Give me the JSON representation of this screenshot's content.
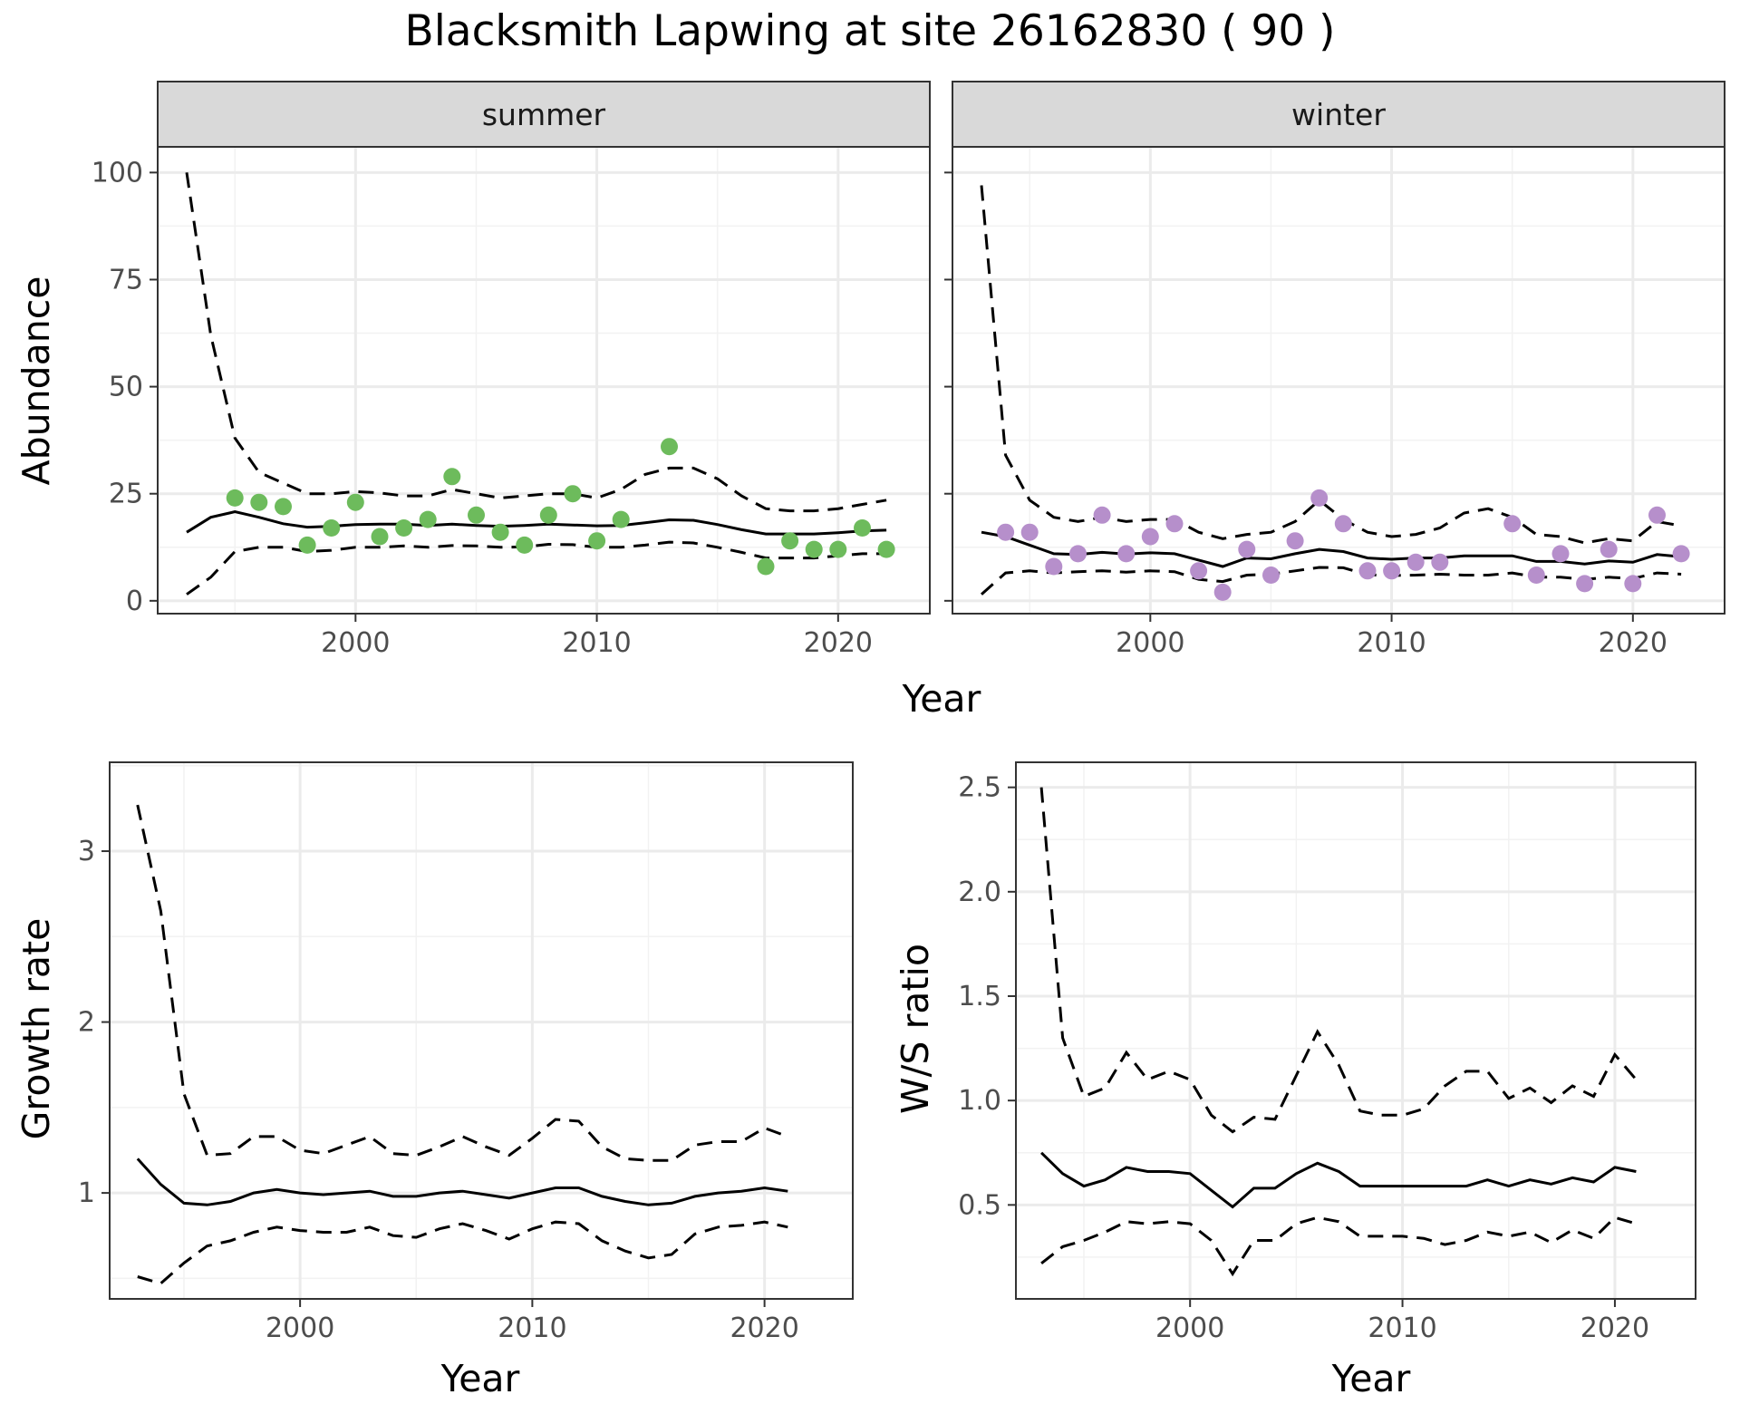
{
  "title": "Blacksmith Lapwing at site 26162830 ( 90 )",
  "chart_data": [
    {
      "type": "line",
      "layout": "facet",
      "xlabel": "Year",
      "ylabel": "Abundance",
      "xlim": [
        1991.8,
        2023.8
      ],
      "ylim": [
        -3,
        106
      ],
      "x_ticks": [
        "2000",
        "2010",
        "2020"
      ],
      "y_ticks": [
        "0",
        "25",
        "50",
        "75",
        "100"
      ],
      "grid": true,
      "panels": [
        {
          "strip": "summer",
          "point_color": "#6dbb5c",
          "years": [
            1993,
            1994,
            1995,
            1996,
            1997,
            1998,
            1999,
            2000,
            2001,
            2002,
            2003,
            2004,
            2005,
            2006,
            2007,
            2008,
            2009,
            2010,
            2011,
            2012,
            2013,
            2014,
            2015,
            2016,
            2017,
            2018,
            2019,
            2020,
            2021,
            2022
          ],
          "estimate": [
            16,
            19.5,
            20.8,
            19.5,
            18,
            17.2,
            17.4,
            17.8,
            17.9,
            17.9,
            17.6,
            17.9,
            17.6,
            17.4,
            17.6,
            17.9,
            17.7,
            17.5,
            17.6,
            18.2,
            18.9,
            18.8,
            17.8,
            16.6,
            15.6,
            15.6,
            15.6,
            15.9,
            16.3,
            16.5
          ],
          "upper": [
            100,
            62,
            38,
            30,
            27.5,
            25,
            25,
            25.5,
            25.2,
            24.5,
            24.5,
            26,
            25,
            24,
            24.5,
            25,
            25,
            24,
            26,
            29.5,
            31,
            31,
            28.5,
            24.5,
            21.5,
            21,
            21,
            21.5,
            22.5,
            23.5
          ],
          "lower": [
            1.5,
            5.5,
            11.5,
            12.5,
            12.5,
            11.5,
            11.8,
            12.5,
            12.5,
            12.8,
            12.5,
            12.9,
            12.8,
            12.5,
            12.6,
            13.2,
            13.1,
            12.5,
            12.5,
            13,
            13.7,
            13.5,
            12.5,
            11.3,
            10,
            10,
            10,
            10.5,
            11,
            11
          ],
          "points": {
            "x": [
              1995,
              1996,
              1997,
              1998,
              1999,
              2000,
              2001,
              2002,
              2003,
              2004,
              2005,
              2006,
              2007,
              2008,
              2009,
              2010,
              2011,
              2013,
              2017,
              2018,
              2019,
              2020,
              2021,
              2022
            ],
            "y": [
              24,
              23,
              22,
              13,
              17,
              23,
              15,
              17,
              19,
              29,
              20,
              16,
              13,
              20,
              25,
              14,
              19,
              36,
              8,
              14,
              12,
              12,
              17,
              12
            ]
          }
        },
        {
          "strip": "winter",
          "point_color": "#b68fcb",
          "years": [
            1993,
            1994,
            1995,
            1996,
            1997,
            1998,
            1999,
            2000,
            2001,
            2002,
            2003,
            2004,
            2005,
            2006,
            2007,
            2008,
            2009,
            2010,
            2011,
            2012,
            2013,
            2014,
            2015,
            2016,
            2017,
            2018,
            2019,
            2020,
            2021,
            2022
          ],
          "estimate": [
            16,
            15,
            13,
            11,
            10.8,
            11.3,
            10.9,
            11.2,
            11,
            9.5,
            8,
            10,
            9.8,
            11,
            12,
            11.5,
            10,
            9.7,
            10,
            10,
            10.5,
            10.5,
            10.5,
            9.2,
            9.2,
            8.6,
            9.3,
            9,
            10.8,
            10.3
          ],
          "upper": [
            97,
            34,
            23.5,
            19.5,
            18.5,
            19.5,
            18.5,
            19,
            19,
            16,
            14.5,
            15.5,
            16,
            18.5,
            23.5,
            19,
            16,
            15,
            15.5,
            17,
            20.5,
            21.5,
            19.5,
            15.5,
            15,
            13.5,
            14.5,
            14,
            18.5,
            17.5
          ],
          "lower": [
            1.5,
            6.5,
            7,
            6.5,
            6.8,
            7,
            6.7,
            7,
            6.8,
            5,
            4.5,
            6,
            6.2,
            7,
            7.8,
            7.7,
            6.1,
            5.9,
            6,
            6.2,
            6,
            6,
            6.5,
            5.5,
            5.5,
            5,
            5.5,
            5.2,
            6.5,
            6.2
          ],
          "points": {
            "x": [
              1994,
              1995,
              1996,
              1997,
              1998,
              1999,
              2000,
              2001,
              2002,
              2003,
              2004,
              2005,
              2006,
              2007,
              2008,
              2009,
              2010,
              2011,
              2012,
              2015,
              2016,
              2017,
              2018,
              2019,
              2020,
              2021,
              2022
            ],
            "y": [
              16,
              16,
              8,
              11,
              20,
              11,
              15,
              18,
              7,
              2,
              12,
              6,
              14,
              24,
              18,
              7,
              7,
              9,
              9,
              18,
              6,
              11,
              4,
              12,
              4,
              20,
              11
            ]
          }
        }
      ]
    },
    {
      "type": "line",
      "xlabel": "Year",
      "ylabel": "Growth rate",
      "xlim": [
        1991.8,
        2023.8
      ],
      "ylim": [
        0.38,
        3.52
      ],
      "x_ticks": [
        "2000",
        "2010",
        "2020"
      ],
      "y_ticks": [
        "1",
        "2",
        "3"
      ],
      "grid": true,
      "years": [
        1993,
        1994,
        1995,
        1996,
        1997,
        1998,
        1999,
        2000,
        2001,
        2002,
        2003,
        2004,
        2005,
        2006,
        2007,
        2008,
        2009,
        2010,
        2011,
        2012,
        2013,
        2014,
        2015,
        2016,
        2017,
        2018,
        2019,
        2020,
        2021
      ],
      "estimate": [
        1.2,
        1.05,
        0.94,
        0.93,
        0.95,
        1,
        1.02,
        1,
        0.99,
        1,
        1.01,
        0.98,
        0.98,
        1,
        1.01,
        0.99,
        0.97,
        1,
        1.03,
        1.03,
        0.98,
        0.95,
        0.93,
        0.94,
        0.98,
        1,
        1.01,
        1.03,
        1.01
      ],
      "upper": [
        3.27,
        2.65,
        1.58,
        1.22,
        1.23,
        1.33,
        1.33,
        1.25,
        1.23,
        1.28,
        1.33,
        1.23,
        1.22,
        1.27,
        1.33,
        1.27,
        1.22,
        1.32,
        1.43,
        1.42,
        1.27,
        1.2,
        1.19,
        1.19,
        1.28,
        1.3,
        1.3,
        1.38,
        1.33
      ],
      "lower": [
        0.51,
        0.47,
        0.59,
        0.69,
        0.72,
        0.77,
        0.8,
        0.78,
        0.77,
        0.77,
        0.8,
        0.75,
        0.74,
        0.79,
        0.82,
        0.78,
        0.73,
        0.79,
        0.83,
        0.82,
        0.72,
        0.66,
        0.62,
        0.64,
        0.76,
        0.8,
        0.81,
        0.83,
        0.8
      ]
    },
    {
      "type": "line",
      "xlabel": "Year",
      "ylabel": "W/S ratio",
      "xlim": [
        1991.8,
        2023.8
      ],
      "ylim": [
        0.05,
        2.62
      ],
      "x_ticks": [
        "2000",
        "2010",
        "2020"
      ],
      "y_ticks": [
        "0.5",
        "1.0",
        "1.5",
        "2.0",
        "2.5"
      ],
      "grid": true,
      "years": [
        1993,
        1994,
        1995,
        1996,
        1997,
        1998,
        1999,
        2000,
        2001,
        2002,
        2003,
        2004,
        2005,
        2006,
        2007,
        2008,
        2009,
        2010,
        2011,
        2012,
        2013,
        2014,
        2015,
        2016,
        2017,
        2018,
        2019,
        2020,
        2021
      ],
      "estimate": [
        0.75,
        0.65,
        0.59,
        0.62,
        0.68,
        0.66,
        0.66,
        0.65,
        0.57,
        0.49,
        0.58,
        0.58,
        0.65,
        0.7,
        0.66,
        0.59,
        0.59,
        0.59,
        0.59,
        0.59,
        0.59,
        0.62,
        0.59,
        0.62,
        0.6,
        0.63,
        0.61,
        0.68,
        0.66
      ],
      "upper": [
        2.5,
        1.3,
        1.02,
        1.06,
        1.23,
        1.1,
        1.14,
        1.1,
        0.93,
        0.85,
        0.92,
        0.91,
        1.12,
        1.33,
        1.17,
        0.95,
        0.93,
        0.93,
        0.96,
        1.07,
        1.14,
        1.14,
        1.01,
        1.06,
        0.99,
        1.07,
        1.02,
        1.22,
        1.1
      ],
      "lower": [
        0.22,
        0.3,
        0.33,
        0.37,
        0.42,
        0.41,
        0.42,
        0.41,
        0.33,
        0.17,
        0.33,
        0.33,
        0.41,
        0.44,
        0.42,
        0.35,
        0.35,
        0.35,
        0.34,
        0.31,
        0.33,
        0.37,
        0.35,
        0.37,
        0.32,
        0.38,
        0.34,
        0.44,
        0.41
      ]
    }
  ]
}
